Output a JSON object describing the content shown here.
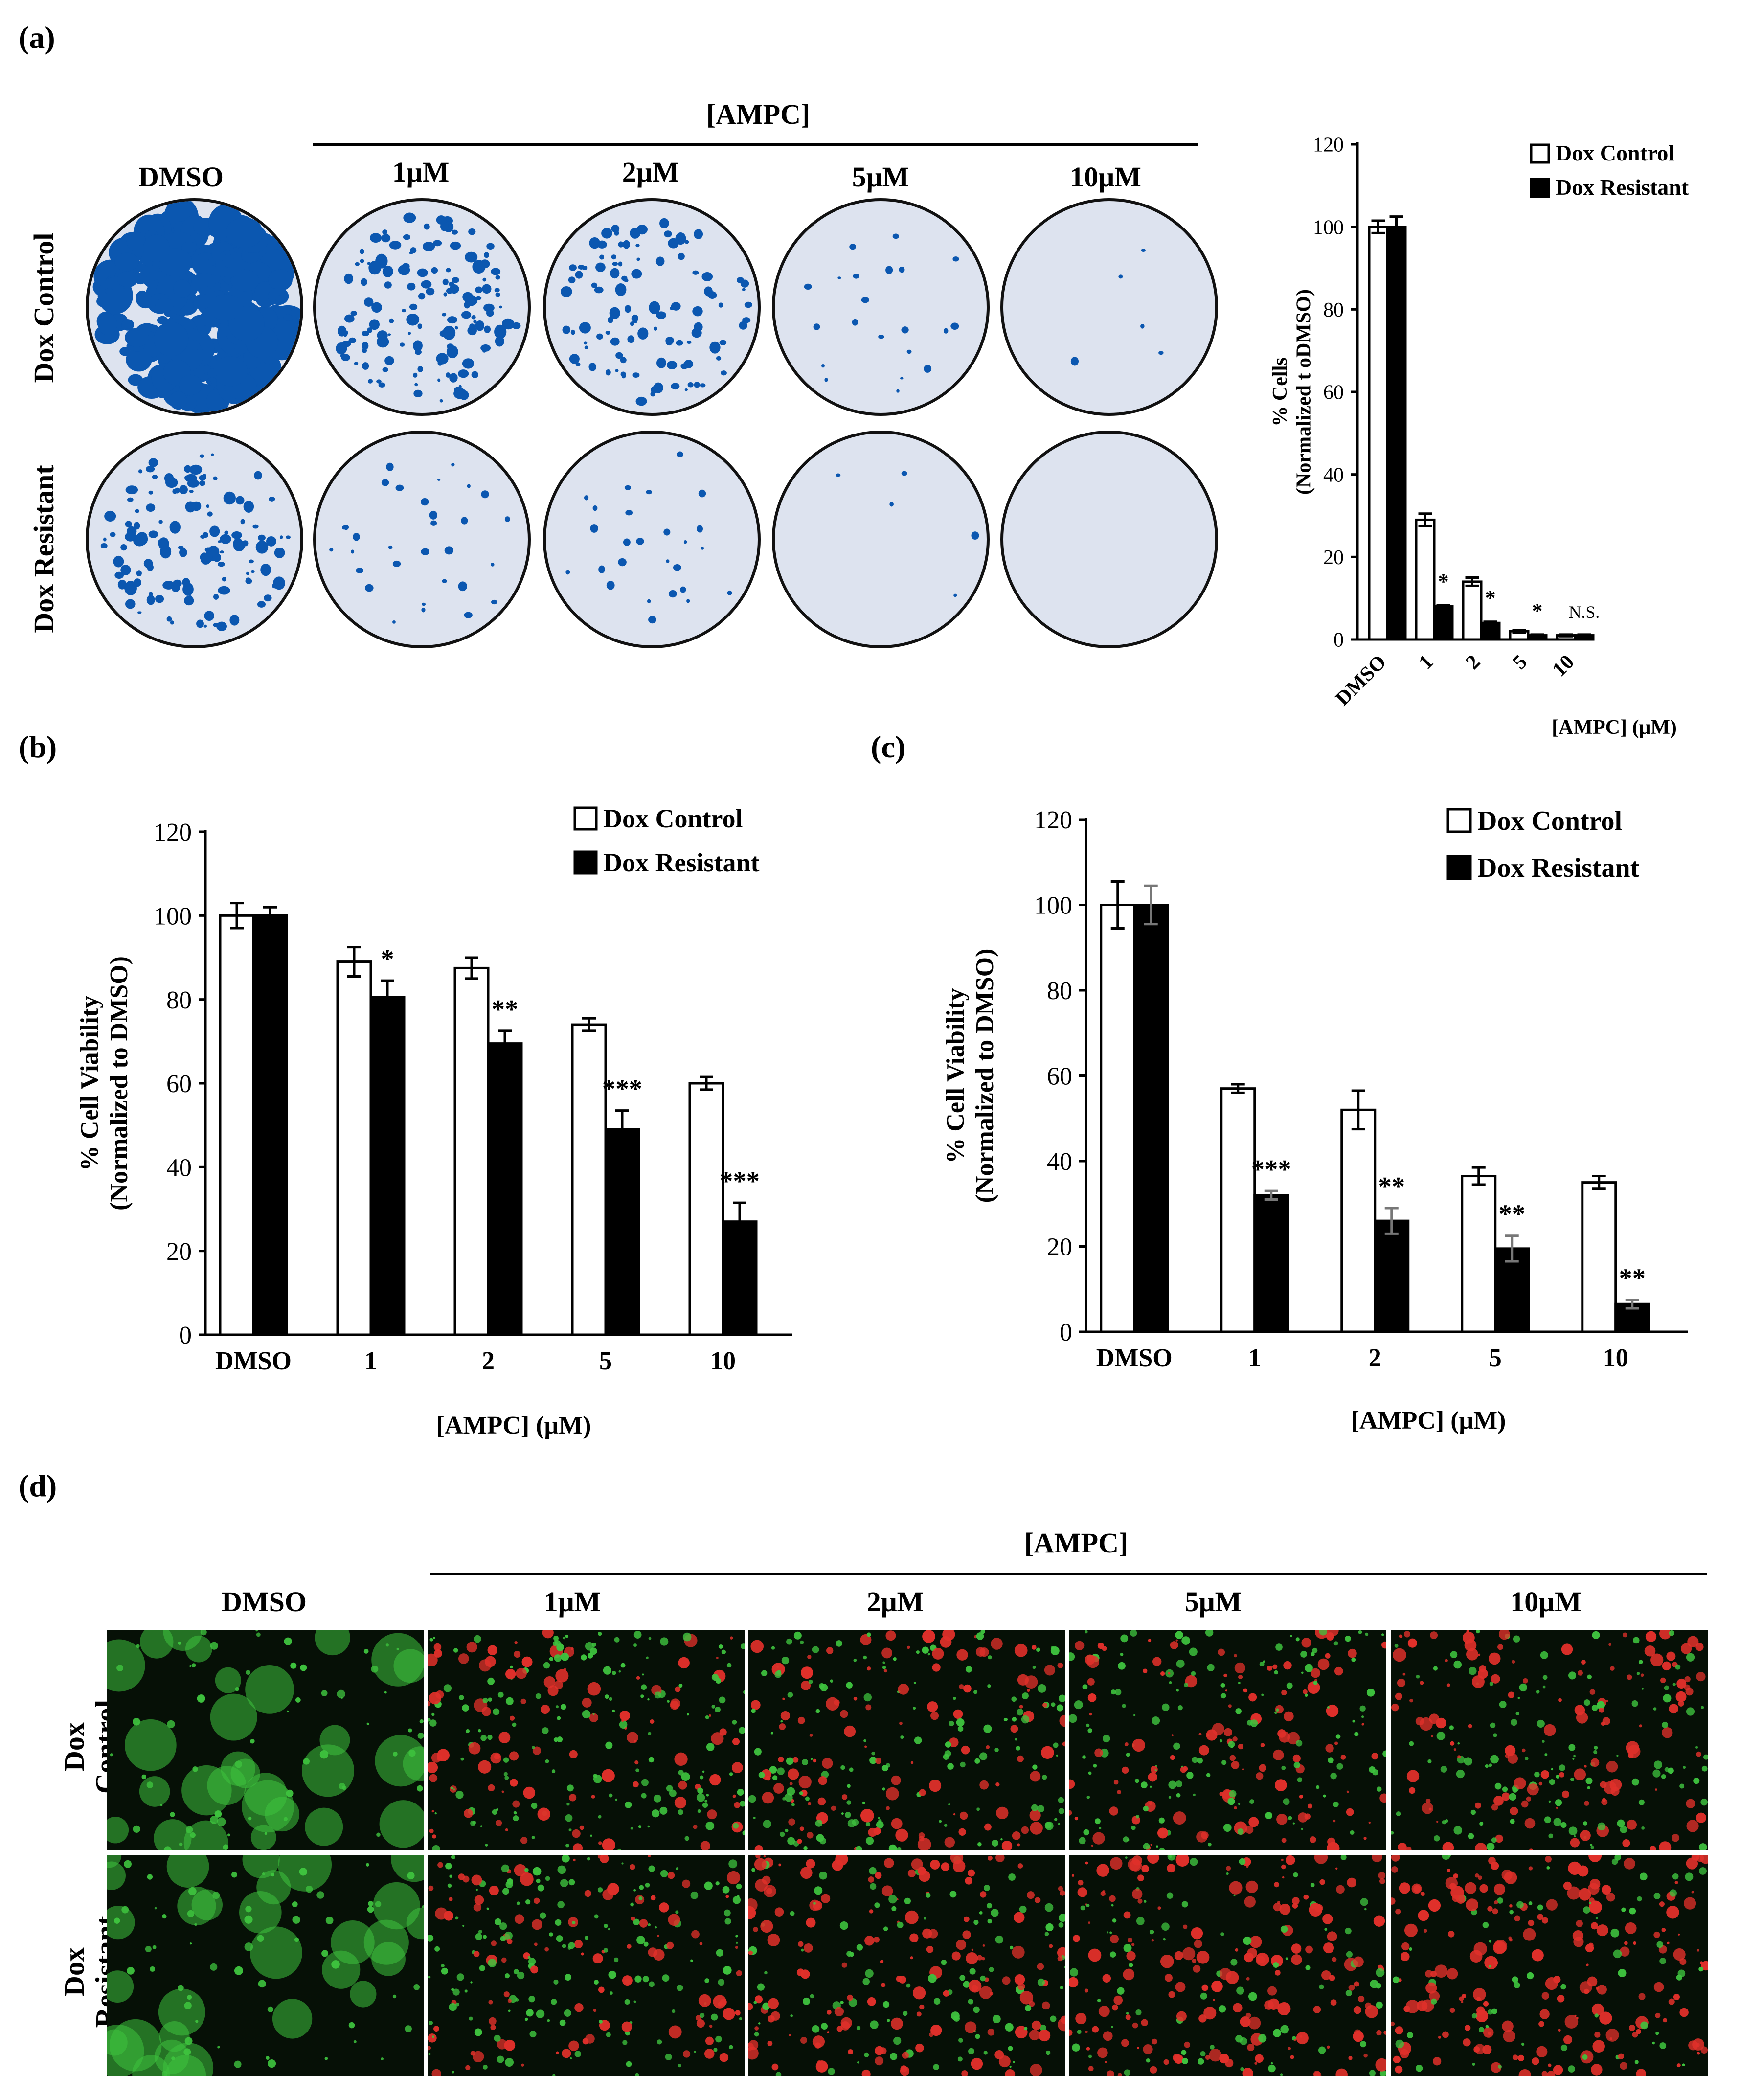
{
  "panel_a": {
    "label": "(a)",
    "group_header": "[AMPC]",
    "columns": [
      "DMSO",
      "1μM",
      "2μM",
      "5μM",
      "10μM"
    ],
    "rows": [
      "Dox Control",
      "Dox Resistant"
    ],
    "colony_density": [
      [
        0.9,
        0.55,
        0.4,
        0.08,
        0.02
      ],
      [
        0.5,
        0.12,
        0.1,
        0.02,
        0.0
      ]
    ],
    "dish_colors": {
      "background": "#dde3ef",
      "stain": "#0b57b0"
    }
  },
  "panel_d": {
    "label": "(d)",
    "group_header": "[AMPC]",
    "columns": [
      "DMSO",
      "1μM",
      "2μM",
      "5μM",
      "10μM"
    ],
    "rows": [
      [
        "Dox",
        "Control"
      ],
      [
        "Dox",
        "Resistant"
      ]
    ],
    "red_fraction": [
      [
        0.0,
        0.35,
        0.4,
        0.45,
        0.55
      ],
      [
        0.0,
        0.35,
        0.6,
        0.65,
        0.75
      ]
    ],
    "colors": {
      "live": "#3ec23e",
      "dead": "#e0302a",
      "background": "#061006"
    }
  },
  "chart_data": [
    {
      "id": "a",
      "type": "bar",
      "categories": [
        "DMSO",
        "1",
        "2",
        "5",
        "10"
      ],
      "series": [
        {
          "name": "Dox Control",
          "values": [
            100,
            29,
            14,
            2,
            1
          ],
          "errors": [
            1.5,
            1.5,
            1,
            0.3,
            0.2
          ],
          "fill": "#ffffff"
        },
        {
          "name": "Dox Resistant",
          "values": [
            100,
            8,
            4,
            1,
            1
          ],
          "errors": [
            2.5,
            0.3,
            0.3,
            0.2,
            0.2
          ],
          "fill": "#000000"
        }
      ],
      "annotations": [
        "",
        "*",
        "*",
        "*",
        "N.S."
      ],
      "ylabel": "% Cells",
      "ylabel2": "(Normalized t oDMSO)",
      "xlabel": "[AMPC] (μM)",
      "ylim": [
        0,
        120
      ],
      "yticks": [
        0,
        20,
        40,
        60,
        80,
        100,
        120
      ],
      "x_tick_rotation": -45,
      "legend_position": "top-right"
    },
    {
      "id": "b",
      "label": "(b)",
      "type": "bar",
      "categories": [
        "DMSO",
        "1",
        "2",
        "5",
        "10"
      ],
      "series": [
        {
          "name": "Dox Control",
          "values": [
            100,
            89,
            87.5,
            74,
            60
          ],
          "errors": [
            3,
            3.5,
            2.5,
            1.5,
            1.5
          ],
          "fill": "#ffffff"
        },
        {
          "name": "Dox Resistant",
          "values": [
            100,
            80.5,
            69.5,
            49,
            27
          ],
          "errors": [
            2,
            4,
            3,
            4.5,
            4.5
          ],
          "fill": "#000000"
        }
      ],
      "annotations": [
        "",
        "*",
        "**",
        "***",
        "***"
      ],
      "ylabel": "% Cell Viability",
      "ylabel2": "(Normalized to DMSO)",
      "xlabel": "[AMPC] (μM)",
      "ylim": [
        0,
        120
      ],
      "yticks": [
        0,
        20,
        40,
        60,
        80,
        100,
        120
      ],
      "legend_position": "top-right"
    },
    {
      "id": "c",
      "label": "(c)",
      "type": "bar",
      "categories": [
        "DMSO",
        "1",
        "2",
        "5",
        "10"
      ],
      "series": [
        {
          "name": "Dox Control",
          "values": [
            100,
            57,
            52,
            36.5,
            35
          ],
          "errors": [
            5.5,
            1,
            4.5,
            2,
            1.5
          ],
          "fill": "#ffffff"
        },
        {
          "name": "Dox Resistant",
          "values": [
            100,
            32,
            26,
            19.5,
            6.5
          ],
          "errors": [
            4.5,
            1,
            3,
            3,
            1
          ],
          "fill": "#000000"
        }
      ],
      "annotations": [
        "",
        "***",
        "**",
        "**",
        "**"
      ],
      "ylabel": "% Cell Viability",
      "ylabel2": "(Normalized to DMSO)",
      "xlabel": "[AMPC] (μM)",
      "ylim": [
        0,
        120
      ],
      "yticks": [
        0,
        20,
        40,
        60,
        80,
        100,
        120
      ],
      "legend_position": "top-right"
    }
  ]
}
